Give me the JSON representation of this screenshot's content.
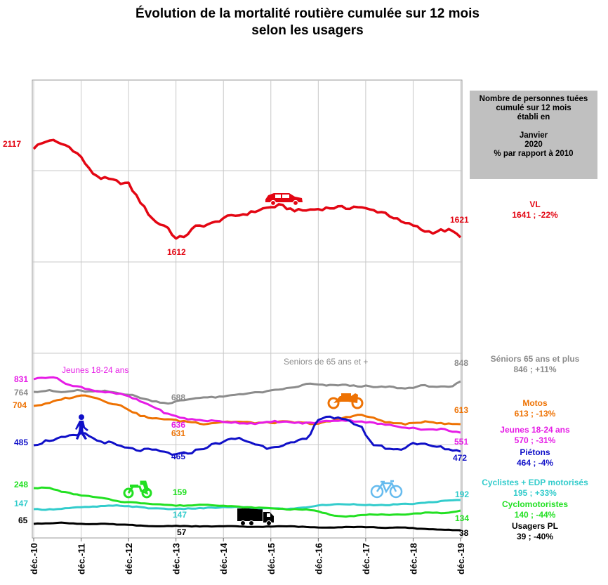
{
  "title_lines": [
    "Évolution de la mortalité routière cumulée sur 12 mois",
    "selon les usagers"
  ],
  "info_box": {
    "line1": "Nombre de personnes tuées",
    "line2": "cumulé sur 12 mois",
    "line3": "établi en",
    "line4": "Janvier",
    "line5": "2020",
    "line6": "% par rapport à 2010"
  },
  "legend": {
    "vl": {
      "name": "VL",
      "value": "1641 ; -22%",
      "color": "#e30613"
    },
    "seniors": {
      "name": "Séniors 65 ans et plus",
      "value": "846 ; +11%",
      "color": "#8c8c8c"
    },
    "motos": {
      "name": "Motos",
      "value": "613 ; -13%",
      "color": "#ee7203"
    },
    "jeunes": {
      "name": "Jeunes 18-24 ans",
      "value": "570 ; -31%",
      "color": "#e61ce6"
    },
    "pietons": {
      "name": "Piétons",
      "value": "464 ; -4%",
      "color": "#1010c8"
    },
    "cyclistes": {
      "name": "Cyclistes + EDP motorisés",
      "value": "195 ; +33%",
      "color": "#33cccc"
    },
    "cyclo": {
      "name": "Cyclomotoristes",
      "value": "140 ; -44%",
      "color": "#22e022"
    },
    "pl": {
      "name": "Usagers PL",
      "value": "39 ; -40%",
      "color": "#000000"
    }
  },
  "chart_data": {
    "type": "line",
    "title": "Évolution de la mortalité routière cumulée sur 12 mois selon les usagers",
    "x_labels": [
      "déc.-10",
      "déc.-11",
      "déc.-12",
      "déc.-13",
      "déc.-14",
      "déc.-15",
      "déc.-16",
      "déc.-17",
      "déc.-18",
      "déc.-19"
    ],
    "grid": true,
    "series": [
      {
        "key": "vl",
        "color": "#e30613",
        "anchors": [
          [
            0,
            2117
          ],
          [
            0.1,
            2140
          ],
          [
            0.2,
            2150
          ],
          [
            0.35,
            2170
          ],
          [
            0.5,
            2150
          ],
          [
            0.65,
            2140
          ],
          [
            0.8,
            2120
          ],
          [
            1.0,
            2070
          ],
          [
            1.2,
            1990
          ],
          [
            1.4,
            1955
          ],
          [
            1.6,
            1945
          ],
          [
            1.8,
            1930
          ],
          [
            2.0,
            1920
          ],
          [
            2.2,
            1840
          ],
          [
            2.4,
            1760
          ],
          [
            2.6,
            1700
          ],
          [
            2.8,
            1685
          ],
          [
            3.0,
            1612
          ],
          [
            3.2,
            1630
          ],
          [
            3.4,
            1680
          ],
          [
            3.6,
            1690
          ],
          [
            3.8,
            1700
          ],
          [
            4.0,
            1730
          ],
          [
            4.2,
            1740
          ],
          [
            4.4,
            1750
          ],
          [
            4.6,
            1760
          ],
          [
            4.8,
            1780
          ],
          [
            5.0,
            1790
          ],
          [
            5.2,
            1800
          ],
          [
            5.4,
            1780
          ],
          [
            5.6,
            1770
          ],
          [
            5.8,
            1775
          ],
          [
            6.0,
            1780
          ],
          [
            6.2,
            1785
          ],
          [
            6.4,
            1790
          ],
          [
            6.6,
            1785
          ],
          [
            6.8,
            1795
          ],
          [
            7.0,
            1780
          ],
          [
            7.2,
            1770
          ],
          [
            7.4,
            1760
          ],
          [
            7.6,
            1730
          ],
          [
            7.8,
            1700
          ],
          [
            8.0,
            1690
          ],
          [
            8.2,
            1660
          ],
          [
            8.4,
            1650
          ],
          [
            8.6,
            1660
          ],
          [
            8.8,
            1660
          ],
          [
            9.0,
            1621
          ]
        ],
        "start_label": "2117",
        "end_label": "1621",
        "extra_labels": [
          {
            "t": 3,
            "value": "1612"
          }
        ]
      },
      {
        "key": "seniors",
        "color": "#8c8c8c",
        "anchors": [
          [
            0,
            764
          ],
          [
            0.3,
            775
          ],
          [
            0.6,
            760
          ],
          [
            0.9,
            775
          ],
          [
            1.2,
            765
          ],
          [
            1.5,
            770
          ],
          [
            1.8,
            755
          ],
          [
            2.1,
            735
          ],
          [
            2.4,
            700
          ],
          [
            2.7,
            680
          ],
          [
            2.9,
            670
          ],
          [
            3.0,
            688
          ],
          [
            3.2,
            700
          ],
          [
            3.5,
            720
          ],
          [
            3.8,
            720
          ],
          [
            4.0,
            725
          ],
          [
            4.3,
            745
          ],
          [
            4.6,
            755
          ],
          [
            4.9,
            765
          ],
          [
            5.2,
            785
          ],
          [
            5.5,
            800
          ],
          [
            5.8,
            830
          ],
          [
            6.0,
            820
          ],
          [
            6.2,
            815
          ],
          [
            6.5,
            820
          ],
          [
            6.8,
            810
          ],
          [
            7.0,
            810
          ],
          [
            7.2,
            800
          ],
          [
            7.5,
            805
          ],
          [
            7.8,
            790
          ],
          [
            8.0,
            800
          ],
          [
            8.2,
            815
          ],
          [
            8.5,
            805
          ],
          [
            8.8,
            800
          ],
          [
            9.0,
            848
          ]
        ],
        "start_label": "764",
        "end_label": "848",
        "extra_labels": [
          {
            "t": 3,
            "value": "688"
          }
        ],
        "inline_name": "Seniors de 65 ans et +"
      },
      {
        "key": "motos",
        "color": "#ee7203",
        "anchors": [
          [
            0,
            704
          ],
          [
            0.3,
            715
          ],
          [
            0.6,
            740
          ],
          [
            0.9,
            750
          ],
          [
            1.1,
            760
          ],
          [
            1.3,
            745
          ],
          [
            1.6,
            720
          ],
          [
            1.9,
            700
          ],
          [
            2.2,
            660
          ],
          [
            2.5,
            640
          ],
          [
            2.8,
            640
          ],
          [
            3.0,
            631
          ],
          [
            3.3,
            625
          ],
          [
            3.6,
            615
          ],
          [
            4.0,
            625
          ],
          [
            4.3,
            625
          ],
          [
            4.6,
            620
          ],
          [
            5.0,
            620
          ],
          [
            5.3,
            625
          ],
          [
            5.6,
            620
          ],
          [
            6.0,
            615
          ],
          [
            6.3,
            630
          ],
          [
            6.6,
            650
          ],
          [
            6.9,
            660
          ],
          [
            7.2,
            640
          ],
          [
            7.5,
            620
          ],
          [
            7.8,
            615
          ],
          [
            8.0,
            615
          ],
          [
            8.3,
            630
          ],
          [
            8.6,
            615
          ],
          [
            9.0,
            613
          ]
        ],
        "start_label": "704",
        "end_label": "613",
        "extra_labels": [
          {
            "t": 3,
            "value": "631"
          }
        ]
      },
      {
        "key": "jeunes",
        "color": "#e61ce6",
        "anchors": [
          [
            0,
            831
          ],
          [
            0.2,
            840
          ],
          [
            0.4,
            845
          ],
          [
            0.6,
            820
          ],
          [
            0.8,
            795
          ],
          [
            1.0,
            790
          ],
          [
            1.3,
            770
          ],
          [
            1.6,
            760
          ],
          [
            1.9,
            750
          ],
          [
            2.2,
            720
          ],
          [
            2.5,
            690
          ],
          [
            2.8,
            650
          ],
          [
            3.0,
            636
          ],
          [
            3.3,
            620
          ],
          [
            3.6,
            615
          ],
          [
            3.9,
            610
          ],
          [
            4.2,
            605
          ],
          [
            4.5,
            600
          ],
          [
            4.8,
            600
          ],
          [
            5.1,
            610
          ],
          [
            5.4,
            605
          ],
          [
            5.7,
            600
          ],
          [
            6.0,
            605
          ],
          [
            6.3,
            615
          ],
          [
            6.6,
            615
          ],
          [
            6.9,
            610
          ],
          [
            7.2,
            600
          ],
          [
            7.5,
            590
          ],
          [
            7.8,
            580
          ],
          [
            8.0,
            575
          ],
          [
            8.3,
            565
          ],
          [
            8.6,
            570
          ],
          [
            9.0,
            551
          ]
        ],
        "start_label": "831",
        "end_label": "551",
        "extra_labels": [
          {
            "t": 3,
            "value": "636"
          }
        ],
        "inline_name": "Jeunes 18-24 ans"
      },
      {
        "key": "pietons",
        "color": "#1010c8",
        "anchors": [
          [
            0,
            485
          ],
          [
            0.3,
            495
          ],
          [
            0.6,
            500
          ],
          [
            0.9,
            505
          ],
          [
            1.1,
            510
          ],
          [
            1.3,
            495
          ],
          [
            1.6,
            490
          ],
          [
            1.9,
            480
          ],
          [
            2.2,
            475
          ],
          [
            2.5,
            475
          ],
          [
            2.8,
            470
          ],
          [
            3.0,
            465
          ],
          [
            3.3,
            470
          ],
          [
            3.6,
            480
          ],
          [
            3.9,
            490
          ],
          [
            4.1,
            495
          ],
          [
            4.3,
            500
          ],
          [
            4.6,
            490
          ],
          [
            4.9,
            480
          ],
          [
            5.2,
            485
          ],
          [
            5.5,
            490
          ],
          [
            5.8,
            500
          ],
          [
            6.0,
            540
          ],
          [
            6.2,
            545
          ],
          [
            6.4,
            540
          ],
          [
            6.6,
            535
          ],
          [
            6.9,
            525
          ],
          [
            7.1,
            490
          ],
          [
            7.4,
            480
          ],
          [
            7.7,
            475
          ],
          [
            8.0,
            490
          ],
          [
            8.3,
            485
          ],
          [
            8.6,
            480
          ],
          [
            9.0,
            472
          ]
        ],
        "start_label": "485",
        "end_label": "472",
        "extra_labels": [
          {
            "t": 3,
            "value": "465"
          }
        ]
      },
      {
        "key": "cyclistes",
        "color": "#33cccc",
        "anchors": [
          [
            0,
            147
          ],
          [
            0.3,
            145
          ],
          [
            0.6,
            150
          ],
          [
            0.9,
            155
          ],
          [
            1.2,
            158
          ],
          [
            1.5,
            162
          ],
          [
            1.8,
            165
          ],
          [
            2.1,
            160
          ],
          [
            2.4,
            152
          ],
          [
            2.7,
            150
          ],
          [
            3.0,
            147
          ],
          [
            3.3,
            150
          ],
          [
            3.6,
            152
          ],
          [
            3.9,
            155
          ],
          [
            4.2,
            158
          ],
          [
            4.5,
            155
          ],
          [
            4.8,
            152
          ],
          [
            5.1,
            150
          ],
          [
            5.4,
            148
          ],
          [
            5.7,
            155
          ],
          [
            6.0,
            165
          ],
          [
            6.3,
            170
          ],
          [
            6.6,
            172
          ],
          [
            6.9,
            170
          ],
          [
            7.2,
            165
          ],
          [
            7.5,
            168
          ],
          [
            7.8,
            172
          ],
          [
            8.1,
            175
          ],
          [
            8.4,
            182
          ],
          [
            8.7,
            188
          ],
          [
            9.0,
            192
          ]
        ],
        "start_label": "147",
        "end_label": "192",
        "extra_labels": [
          {
            "t": 3,
            "value": "147"
          }
        ]
      },
      {
        "key": "cyclo",
        "color": "#22e022",
        "anchors": [
          [
            0,
            248
          ],
          [
            0.3,
            250
          ],
          [
            0.6,
            230
          ],
          [
            0.9,
            215
          ],
          [
            1.2,
            205
          ],
          [
            1.5,
            195
          ],
          [
            1.8,
            180
          ],
          [
            2.1,
            175
          ],
          [
            2.4,
            170
          ],
          [
            2.7,
            165
          ],
          [
            3.0,
            159
          ],
          [
            3.3,
            160
          ],
          [
            3.6,
            165
          ],
          [
            3.9,
            160
          ],
          [
            4.2,
            155
          ],
          [
            4.5,
            150
          ],
          [
            4.8,
            148
          ],
          [
            5.1,
            145
          ],
          [
            5.4,
            140
          ],
          [
            5.7,
            140
          ],
          [
            6.0,
            130
          ],
          [
            6.3,
            110
          ],
          [
            6.6,
            105
          ],
          [
            6.9,
            110
          ],
          [
            7.2,
            115
          ],
          [
            7.5,
            110
          ],
          [
            7.8,
            115
          ],
          [
            8.1,
            120
          ],
          [
            8.4,
            125
          ],
          [
            8.7,
            120
          ],
          [
            9.0,
            134
          ]
        ],
        "start_label": "248",
        "end_label": "134",
        "extra_labels": [
          {
            "t": 3,
            "value": "159"
          }
        ]
      },
      {
        "key": "pl",
        "color": "#000000",
        "anchors": [
          [
            0,
            65
          ],
          [
            0.3,
            68
          ],
          [
            0.6,
            70
          ],
          [
            0.9,
            66
          ],
          [
            1.2,
            64
          ],
          [
            1.5,
            65
          ],
          [
            1.8,
            62
          ],
          [
            2.1,
            60
          ],
          [
            2.4,
            55
          ],
          [
            2.7,
            55
          ],
          [
            3.0,
            57
          ],
          [
            3.3,
            55
          ],
          [
            3.6,
            54
          ],
          [
            3.9,
            55
          ],
          [
            4.2,
            55
          ],
          [
            4.5,
            52
          ],
          [
            4.8,
            53
          ],
          [
            5.1,
            54
          ],
          [
            5.4,
            55
          ],
          [
            5.7,
            52
          ],
          [
            6.0,
            50
          ],
          [
            6.3,
            50
          ],
          [
            6.6,
            52
          ],
          [
            6.9,
            52
          ],
          [
            7.2,
            50
          ],
          [
            7.5,
            48
          ],
          [
            7.8,
            50
          ],
          [
            8.1,
            45
          ],
          [
            8.4,
            42
          ],
          [
            8.7,
            40
          ],
          [
            9.0,
            38
          ]
        ],
        "start_label": "65",
        "end_label": "38",
        "extra_labels": [
          {
            "t": 3,
            "value": "57"
          }
        ]
      }
    ]
  }
}
